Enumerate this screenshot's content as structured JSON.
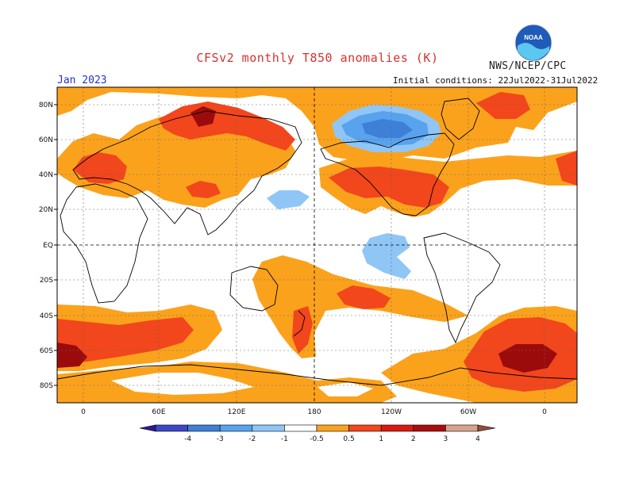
{
  "header": {
    "title": "CFSv2 monthly T850 anomalies (K)",
    "organization": "NWS/NCEP/CPC",
    "valid_month": "Jan 2023",
    "initial_conditions": "Initial conditions: 22Jul2022-31Jul2022",
    "logo_text": "NOAA"
  },
  "axes": {
    "lat_labels": [
      "80N",
      "60N",
      "40N",
      "20N",
      "EQ",
      "20S",
      "40S",
      "60S",
      "80S"
    ],
    "lon_labels": [
      "0",
      "60E",
      "120E",
      "180",
      "120W",
      "60W",
      "0"
    ]
  },
  "legend": {
    "tick_labels": [
      "-4",
      "-3",
      "-2",
      "-1",
      "-0.5",
      "0.5",
      "1",
      "2",
      "3",
      "4"
    ],
    "colors": [
      "#2a1c8f",
      "#3c48c8",
      "#3e7fd8",
      "#58a2ee",
      "#8fc6f6",
      "#ffffff",
      "#fba21c",
      "#f2461c",
      "#d91a10",
      "#a80d0c",
      "#d7a38e",
      "#8d5040"
    ]
  },
  "palette": {
    "warm1": "#fba21c",
    "warm2": "#f2461c",
    "warm3": "#c8150c",
    "warm4": "#9c0b0b",
    "cool1": "#8fc6f6",
    "cool2": "#58a2ee",
    "cool3": "#3e7fd8"
  }
}
